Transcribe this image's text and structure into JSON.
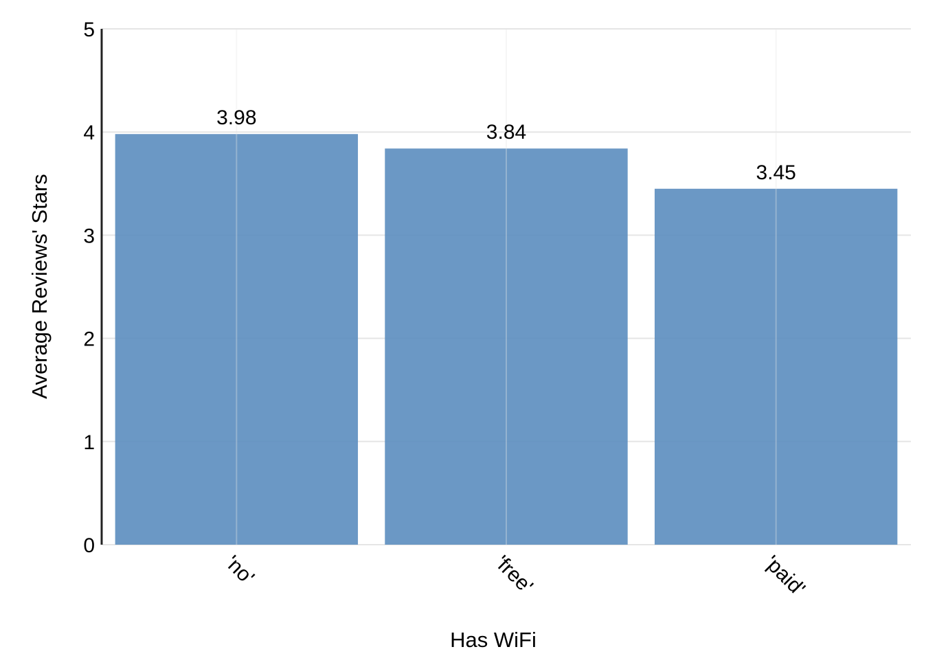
{
  "chart_data": {
    "type": "bar",
    "categories": [
      "'no'",
      "'free'",
      "'paid'"
    ],
    "values": [
      3.98,
      3.84,
      3.45
    ],
    "data_labels": [
      "3.98",
      "3.84",
      "3.45"
    ],
    "title": "",
    "xlabel": "Has WiFi",
    "ylabel": "Average Reviews' Stars",
    "ylim": [
      0,
      5
    ],
    "yticks": [
      0,
      1,
      2,
      3,
      4,
      5
    ],
    "grid": true,
    "bar_color": "#5b8dbf",
    "grid_color": "#e5e5e5",
    "axis_color": "#222222"
  }
}
